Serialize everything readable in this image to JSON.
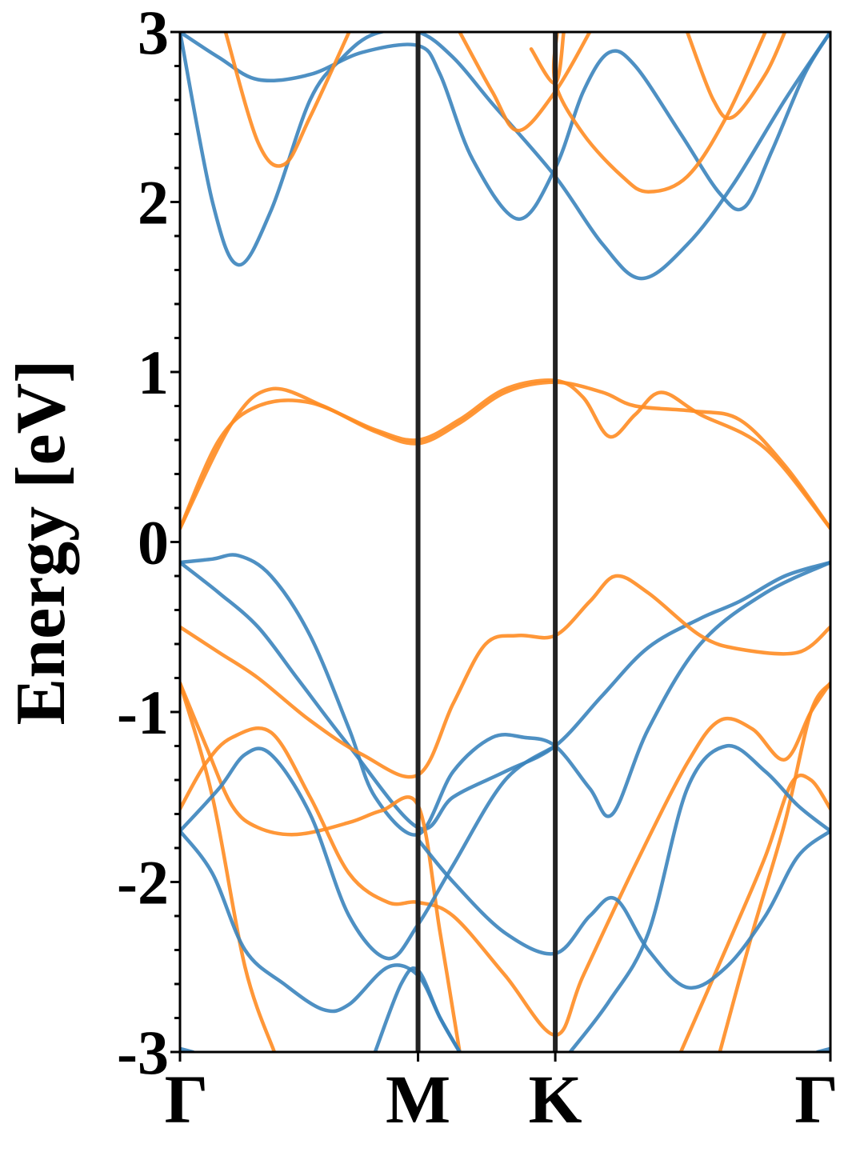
{
  "chart_data": {
    "type": "line",
    "title": "",
    "ylabel": "Energy [eV]",
    "xlabel": "",
    "ylim": [
      -3,
      3
    ],
    "xlim": [
      0,
      1
    ],
    "yticks": [
      3,
      2,
      1,
      0,
      -1,
      -2,
      -3
    ],
    "ytick_labels": [
      "3",
      "2",
      "1",
      "0",
      "-1",
      "-2",
      "-3"
    ],
    "xticks": [
      {
        "label": "Γ",
        "x": 0.0
      },
      {
        "label": "M",
        "x": 0.366
      },
      {
        "label": "K",
        "x": 0.577
      },
      {
        "label": "Γ",
        "x": 1.0
      }
    ],
    "grid": false,
    "legend": "none",
    "vertical_lines_at": [
      0.366,
      0.577
    ],
    "colors": {
      "blue": "#3b84bc",
      "orange": "#ff8c22",
      "axis": "#000000",
      "vline": "#222222"
    },
    "series": [
      {
        "color": "blue",
        "points": [
          [
            0.0,
            3.0
          ],
          [
            0.05,
            2.0
          ],
          [
            0.09,
            1.63
          ],
          [
            0.14,
            1.95
          ],
          [
            0.2,
            2.6
          ],
          [
            0.25,
            2.85
          ],
          [
            0.3,
            2.99
          ],
          [
            0.366,
            3.0
          ],
          [
            0.42,
            2.85
          ],
          [
            0.48,
            2.58
          ],
          [
            0.577,
            2.15
          ],
          [
            0.65,
            1.75
          ],
          [
            0.71,
            1.55
          ],
          [
            0.78,
            1.75
          ],
          [
            0.85,
            2.1
          ],
          [
            0.93,
            2.6
          ],
          [
            1.0,
            3.0
          ]
        ]
      },
      {
        "color": "blue",
        "points": [
          [
            0.0,
            3.0
          ],
          [
            0.06,
            2.85
          ],
          [
            0.12,
            2.72
          ],
          [
            0.2,
            2.75
          ],
          [
            0.28,
            2.88
          ],
          [
            0.366,
            2.92
          ],
          [
            0.4,
            2.75
          ],
          [
            0.45,
            2.25
          ],
          [
            0.52,
            1.9
          ],
          [
            0.577,
            2.2
          ],
          [
            0.62,
            2.65
          ],
          [
            0.66,
            2.88
          ],
          [
            0.7,
            2.8
          ],
          [
            0.77,
            2.4
          ],
          [
            0.83,
            2.05
          ],
          [
            0.868,
            1.97
          ],
          [
            0.91,
            2.3
          ],
          [
            0.96,
            2.75
          ],
          [
            1.0,
            3.0
          ]
        ]
      },
      {
        "color": "orange",
        "points": [
          [
            0.07,
            3.0
          ],
          [
            0.12,
            2.35
          ],
          [
            0.16,
            2.22
          ],
          [
            0.2,
            2.5
          ],
          [
            0.26,
            3.0
          ]
        ]
      },
      {
        "color": "orange",
        "points": [
          [
            0.43,
            3.0
          ],
          [
            0.48,
            2.65
          ],
          [
            0.52,
            2.42
          ],
          [
            0.577,
            2.65
          ],
          [
            0.63,
            3.0
          ]
        ]
      },
      {
        "color": "orange",
        "points": [
          [
            0.58,
            3.0
          ],
          [
            0.577,
            2.7
          ],
          [
            0.62,
            2.4
          ],
          [
            0.68,
            2.15
          ],
          [
            0.72,
            2.06
          ],
          [
            0.78,
            2.15
          ],
          [
            0.84,
            2.5
          ],
          [
            0.9,
            3.0
          ]
        ]
      },
      {
        "color": "orange",
        "points": [
          [
            0.59,
            3.0
          ],
          [
            0.577,
            2.7
          ],
          [
            0.54,
            2.9
          ]
        ]
      },
      {
        "color": "orange",
        "points": [
          [
            0.78,
            3.0
          ],
          [
            0.82,
            2.6
          ],
          [
            0.85,
            2.5
          ],
          [
            0.9,
            2.75
          ],
          [
            0.93,
            3.0
          ]
        ]
      },
      {
        "color": "orange",
        "points": [
          [
            0.0,
            0.08
          ],
          [
            0.08,
            0.7
          ],
          [
            0.14,
            0.9
          ],
          [
            0.22,
            0.8
          ],
          [
            0.3,
            0.65
          ],
          [
            0.366,
            0.58
          ],
          [
            0.43,
            0.7
          ],
          [
            0.5,
            0.88
          ],
          [
            0.577,
            0.94
          ],
          [
            0.65,
            0.88
          ],
          [
            0.7,
            0.8
          ],
          [
            0.79,
            0.77
          ],
          [
            0.86,
            0.72
          ],
          [
            0.93,
            0.45
          ],
          [
            1.0,
            0.08
          ]
        ]
      },
      {
        "color": "orange",
        "points": [
          [
            0.0,
            0.08
          ],
          [
            0.06,
            0.6
          ],
          [
            0.12,
            0.8
          ],
          [
            0.2,
            0.82
          ],
          [
            0.3,
            0.66
          ],
          [
            0.366,
            0.6
          ],
          [
            0.43,
            0.72
          ],
          [
            0.5,
            0.9
          ],
          [
            0.577,
            0.95
          ],
          [
            0.62,
            0.85
          ],
          [
            0.66,
            0.62
          ],
          [
            0.7,
            0.75
          ],
          [
            0.74,
            0.88
          ],
          [
            0.8,
            0.75
          ],
          [
            0.9,
            0.55
          ],
          [
            1.0,
            0.08
          ]
        ]
      },
      {
        "color": "blue",
        "points": [
          [
            0.0,
            -0.12
          ],
          [
            0.05,
            -0.1
          ],
          [
            0.09,
            -0.08
          ],
          [
            0.14,
            -0.2
          ],
          [
            0.2,
            -0.55
          ],
          [
            0.26,
            -1.1
          ],
          [
            0.3,
            -1.5
          ],
          [
            0.366,
            -1.72
          ],
          [
            0.42,
            -1.35
          ],
          [
            0.48,
            -1.15
          ],
          [
            0.53,
            -1.15
          ],
          [
            0.577,
            -1.2
          ],
          [
            0.63,
            -1.45
          ],
          [
            0.665,
            -1.6
          ],
          [
            0.72,
            -1.1
          ],
          [
            0.8,
            -0.6
          ],
          [
            0.9,
            -0.3
          ],
          [
            1.0,
            -0.12
          ]
        ]
      },
      {
        "color": "blue",
        "points": [
          [
            0.0,
            -0.12
          ],
          [
            0.06,
            -0.3
          ],
          [
            0.12,
            -0.5
          ],
          [
            0.18,
            -0.8
          ],
          [
            0.26,
            -1.2
          ],
          [
            0.366,
            -1.68
          ],
          [
            0.42,
            -1.5
          ],
          [
            0.5,
            -1.35
          ],
          [
            0.577,
            -1.2
          ],
          [
            0.65,
            -0.9
          ],
          [
            0.72,
            -0.62
          ],
          [
            0.8,
            -0.45
          ],
          [
            0.86,
            -0.35
          ],
          [
            0.93,
            -0.2
          ],
          [
            1.0,
            -0.12
          ]
        ]
      },
      {
        "color": "orange",
        "points": [
          [
            0.0,
            -0.5
          ],
          [
            0.06,
            -0.65
          ],
          [
            0.12,
            -0.8
          ],
          [
            0.2,
            -1.05
          ],
          [
            0.28,
            -1.25
          ],
          [
            0.366,
            -1.37
          ],
          [
            0.42,
            -0.95
          ],
          [
            0.47,
            -0.6
          ],
          [
            0.52,
            -0.55
          ],
          [
            0.577,
            -0.55
          ],
          [
            0.63,
            -0.35
          ],
          [
            0.67,
            -0.2
          ],
          [
            0.72,
            -0.3
          ],
          [
            0.8,
            -0.55
          ],
          [
            0.86,
            -0.63
          ],
          [
            0.95,
            -0.65
          ],
          [
            1.0,
            -0.5
          ]
        ]
      },
      {
        "color": "orange",
        "points": [
          [
            0.0,
            -0.83
          ],
          [
            0.04,
            -1.2
          ],
          [
            0.08,
            -1.55
          ],
          [
            0.12,
            -1.68
          ],
          [
            0.18,
            -1.72
          ],
          [
            0.26,
            -1.65
          ],
          [
            0.31,
            -1.58
          ],
          [
            0.366,
            -1.55
          ],
          [
            0.4,
            -2.3
          ],
          [
            0.43,
            -3.0
          ]
        ]
      },
      {
        "color": "orange",
        "points": [
          [
            0.0,
            -1.57
          ],
          [
            0.04,
            -1.3
          ],
          [
            0.08,
            -1.15
          ],
          [
            0.14,
            -1.12
          ],
          [
            0.2,
            -1.5
          ],
          [
            0.26,
            -1.95
          ],
          [
            0.32,
            -2.12
          ],
          [
            0.366,
            -2.12
          ],
          [
            0.42,
            -2.2
          ],
          [
            0.5,
            -2.55
          ],
          [
            0.577,
            -2.9
          ],
          [
            0.62,
            -2.55
          ],
          [
            0.7,
            -1.9
          ],
          [
            0.78,
            -1.3
          ],
          [
            0.83,
            -1.05
          ],
          [
            0.88,
            -1.1
          ],
          [
            0.93,
            -1.28
          ],
          [
            0.97,
            -1.0
          ],
          [
            1.0,
            -0.83
          ]
        ]
      },
      {
        "color": "orange",
        "points": [
          [
            0.0,
            -0.83
          ],
          [
            0.05,
            -1.5
          ],
          [
            0.1,
            -2.5
          ],
          [
            0.145,
            -3.0
          ]
        ]
      },
      {
        "color": "orange",
        "points": [
          [
            0.77,
            -3.0
          ],
          [
            0.85,
            -2.3
          ],
          [
            0.9,
            -1.85
          ],
          [
            0.94,
            -1.42
          ],
          [
            0.97,
            -1.4
          ],
          [
            1.0,
            -1.57
          ]
        ]
      },
      {
        "color": "orange",
        "points": [
          [
            0.83,
            -3.0
          ],
          [
            0.88,
            -2.3
          ],
          [
            0.93,
            -1.65
          ],
          [
            0.97,
            -1.0
          ],
          [
            1.0,
            -0.83
          ]
        ]
      },
      {
        "color": "blue",
        "points": [
          [
            0.0,
            -1.7
          ],
          [
            0.06,
            -1.45
          ],
          [
            0.1,
            -1.25
          ],
          [
            0.14,
            -1.25
          ],
          [
            0.2,
            -1.6
          ],
          [
            0.26,
            -2.2
          ],
          [
            0.32,
            -2.45
          ],
          [
            0.366,
            -2.25
          ],
          [
            0.42,
            -1.9
          ],
          [
            0.5,
            -1.4
          ],
          [
            0.577,
            -1.2
          ]
        ]
      },
      {
        "color": "blue",
        "points": [
          [
            0.0,
            -1.7
          ],
          [
            0.05,
            -1.95
          ],
          [
            0.1,
            -2.4
          ],
          [
            0.16,
            -2.6
          ],
          [
            0.22,
            -2.75
          ],
          [
            0.26,
            -2.72
          ],
          [
            0.32,
            -2.5
          ],
          [
            0.366,
            -2.55
          ],
          [
            0.4,
            -2.8
          ],
          [
            0.43,
            -3.0
          ]
        ]
      },
      {
        "color": "blue",
        "points": [
          [
            0.3,
            -3.0
          ],
          [
            0.34,
            -2.6
          ],
          [
            0.366,
            -2.52
          ],
          [
            0.4,
            -2.8
          ],
          [
            0.43,
            -3.0
          ]
        ]
      },
      {
        "color": "blue",
        "points": [
          [
            0.366,
            -1.75
          ],
          [
            0.42,
            -2.0
          ],
          [
            0.5,
            -2.3
          ],
          [
            0.577,
            -2.42
          ],
          [
            0.63,
            -2.2
          ],
          [
            0.67,
            -2.1
          ],
          [
            0.72,
            -2.4
          ],
          [
            0.78,
            -2.62
          ],
          [
            0.84,
            -2.5
          ],
          [
            0.9,
            -2.2
          ],
          [
            0.95,
            -1.85
          ],
          [
            1.0,
            -1.7
          ]
        ]
      },
      {
        "color": "blue",
        "points": [
          [
            0.6,
            -3.0
          ],
          [
            0.66,
            -2.7
          ],
          [
            0.72,
            -2.3
          ],
          [
            0.78,
            -1.45
          ],
          [
            0.84,
            -1.2
          ],
          [
            0.9,
            -1.35
          ],
          [
            0.95,
            -1.55
          ],
          [
            1.0,
            -1.7
          ]
        ]
      },
      {
        "color": "blue",
        "points": [
          [
            0.0,
            -2.98
          ],
          [
            0.02,
            -3.0
          ]
        ]
      },
      {
        "color": "blue",
        "points": [
          [
            0.98,
            -3.0
          ],
          [
            1.0,
            -2.98
          ]
        ]
      }
    ]
  }
}
